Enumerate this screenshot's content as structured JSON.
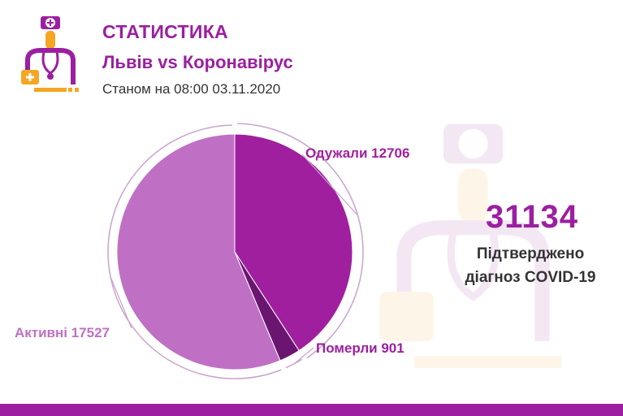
{
  "header": {
    "title": "СТАТИСТИКА",
    "subtitle": "Львів vs Коронавірус",
    "as_of": "Станом на 08:00 03.11.2020"
  },
  "summary": {
    "total": "31134",
    "caption_line1": "Підтверджено",
    "caption_line2": "діагноз COVID-19"
  },
  "icons": {
    "logo": "doctor-icon",
    "watermark": "doctor-watermark-icon"
  },
  "colors": {
    "accent": "#9b1fa0",
    "recovered": "#a01f9e",
    "deaths": "#6a1670",
    "active": "#bf70c4",
    "logo_orange": "#f5a623",
    "footer": "#9b1fa0"
  },
  "chart_data": {
    "type": "pie",
    "title": "",
    "slices": [
      {
        "label": "Одужали",
        "value": 12706,
        "display": "Одужали 12706",
        "color": "#a01f9e"
      },
      {
        "label": "Померли",
        "value": 901,
        "display": "Померли 901",
        "color": "#6a1670"
      },
      {
        "label": "Активні",
        "value": 17527,
        "display": "Активні 17527",
        "color": "#bf70c4"
      }
    ]
  }
}
